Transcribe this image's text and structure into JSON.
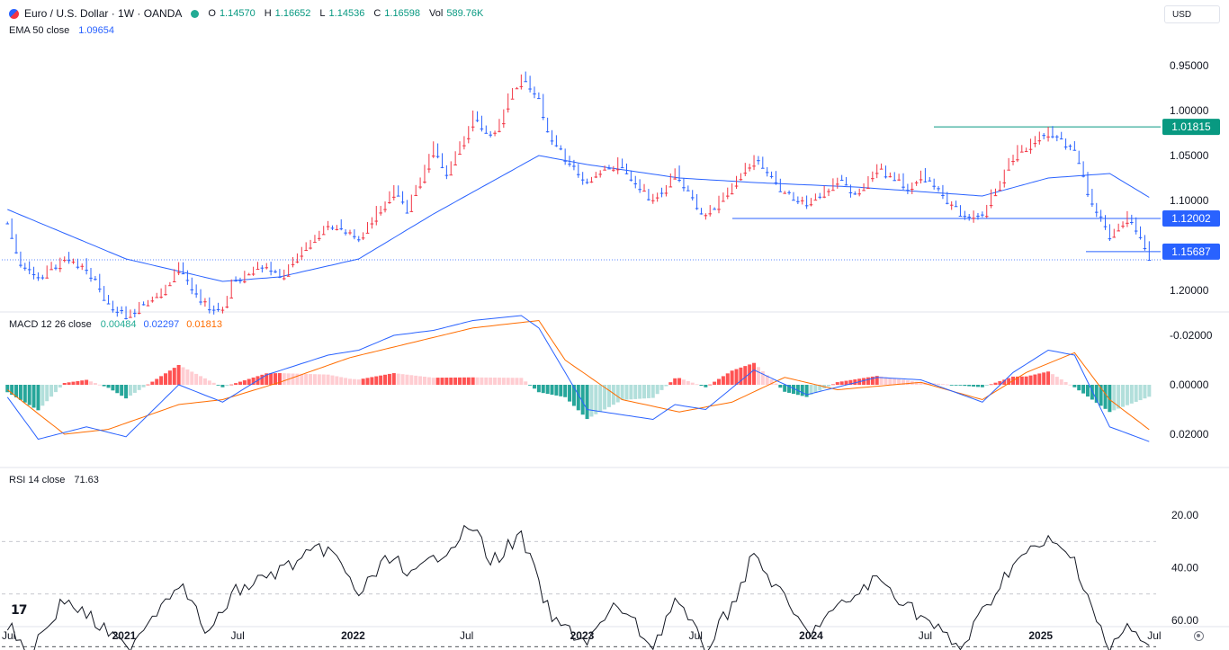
{
  "header": {
    "symbol": "Euro / U.S. Dollar · 1W · OANDA",
    "ohlc": [
      {
        "k": "O",
        "v": "1.14570"
      },
      {
        "k": "H",
        "v": "1.16652"
      },
      {
        "k": "L",
        "v": "1.14536"
      },
      {
        "k": "C",
        "v": "1.16598"
      },
      {
        "k": "Vol",
        "v": "589.76K"
      }
    ],
    "ema_label": "EMA 50 close",
    "ema_value": "1.09654",
    "macd_label": "MACD 12 26 close",
    "macd_values": [
      "0.00484",
      "0.02297",
      "0.01813"
    ],
    "rsi_label": "RSI 14 close",
    "rsi_value": "71.63",
    "currency": "USD",
    "status_dot_color": "#22ab94"
  },
  "colors": {
    "up": "#2962ff",
    "down": "#f23645",
    "ema": "#2962ff",
    "macd": "#2962ff",
    "signal": "#ff6d00",
    "hist_up_strong": "#26a69a",
    "hist_up_weak": "#b2dfdb",
    "hist_down_strong": "#ff5252",
    "hist_down_weak": "#ffcdd2",
    "rsi": "#131722",
    "support_label": "#089981",
    "resistance_label": "#2962ff",
    "grid_text": "#131722",
    "macd_value_colors": [
      "#22ab94",
      "#2962ff",
      "#ff6d00"
    ]
  },
  "chart_data": {
    "type": "candlestick",
    "title": "Euro / U.S. Dollar · 1W · OANDA",
    "x_range": [
      "2020-07",
      "2025-07"
    ],
    "x_tick_labels": [
      "Jul",
      "2021",
      "Jul",
      "2022",
      "Jul",
      "2023",
      "Jul",
      "2024",
      "Jul",
      "2025",
      "Jul"
    ],
    "price_axis": {
      "ticks": [
        "1.20000",
        "1.10000",
        "1.05000",
        "1.00000",
        "0.95000"
      ],
      "ylim": [
        0.945,
        1.235
      ]
    },
    "price_labels": [
      {
        "value": 1.15687,
        "text": "1.15687",
        "kind": "resistance"
      },
      {
        "value": 1.12002,
        "text": "1.12002",
        "kind": "resistance"
      },
      {
        "value": 1.01815,
        "text": "1.01815",
        "kind": "support"
      }
    ],
    "last_price": 1.16598,
    "anchors": [
      [
        "2020-06-29",
        1.125
      ],
      [
        "2020-07-20",
        1.175
      ],
      [
        "2020-08-17",
        1.185
      ],
      [
        "2020-09-28",
        1.165
      ],
      [
        "2020-11-02",
        1.175
      ],
      [
        "2020-12-07",
        1.215
      ],
      [
        "2021-01-04",
        1.228
      ],
      [
        "2021-02-22",
        1.208
      ],
      [
        "2021-03-29",
        1.175
      ],
      [
        "2021-05-17",
        1.222
      ],
      [
        "2021-06-07",
        1.222
      ],
      [
        "2021-06-21",
        1.19
      ],
      [
        "2021-08-16",
        1.172
      ],
      [
        "2021-09-06",
        1.185
      ],
      [
        "2021-10-11",
        1.155
      ],
      [
        "2021-11-22",
        1.125
      ],
      [
        "2022-01-10",
        1.142
      ],
      [
        "2022-03-07",
        1.09
      ],
      [
        "2022-03-28",
        1.11
      ],
      [
        "2022-05-09",
        1.04
      ],
      [
        "2022-05-30",
        1.072
      ],
      [
        "2022-07-11",
        1.005
      ],
      [
        "2022-08-08",
        1.03
      ],
      [
        "2022-09-26",
        0.96
      ],
      [
        "2022-10-24",
        0.99
      ],
      [
        "2022-11-14",
        1.035
      ],
      [
        "2023-01-09",
        1.08
      ],
      [
        "2023-02-27",
        1.058
      ],
      [
        "2023-04-24",
        1.1
      ],
      [
        "2023-05-29",
        1.072
      ],
      [
        "2023-07-17",
        1.118
      ],
      [
        "2023-08-28",
        1.082
      ],
      [
        "2023-10-02",
        1.052
      ],
      [
        "2023-11-20",
        1.092
      ],
      [
        "2023-12-25",
        1.105
      ],
      [
        "2024-02-12",
        1.075
      ],
      [
        "2024-03-11",
        1.092
      ],
      [
        "2024-04-15",
        1.065
      ],
      [
        "2024-06-03",
        1.085
      ],
      [
        "2024-06-24",
        1.07
      ],
      [
        "2024-08-26",
        1.115
      ],
      [
        "2024-09-30",
        1.115
      ],
      [
        "2024-11-18",
        1.05
      ],
      [
        "2025-01-13",
        1.025
      ],
      [
        "2025-02-24",
        1.045
      ],
      [
        "2025-03-17",
        1.09
      ],
      [
        "2025-04-21",
        1.14
      ],
      [
        "2025-05-19",
        1.12
      ],
      [
        "2025-06-16",
        1.152
      ],
      [
        "2025-06-23",
        1.166
      ]
    ],
    "ema50_anchors": [
      [
        "2020-06-29",
        1.11
      ],
      [
        "2021-01-04",
        1.165
      ],
      [
        "2021-06-07",
        1.19
      ],
      [
        "2021-09-06",
        1.185
      ],
      [
        "2022-01-10",
        1.165
      ],
      [
        "2022-05-09",
        1.115
      ],
      [
        "2022-10-24",
        1.05
      ],
      [
        "2023-01-09",
        1.06
      ],
      [
        "2023-06-05",
        1.075
      ],
      [
        "2023-10-02",
        1.08
      ],
      [
        "2024-03-11",
        1.085
      ],
      [
        "2024-09-30",
        1.095
      ],
      [
        "2025-01-13",
        1.075
      ],
      [
        "2025-04-21",
        1.07
      ],
      [
        "2025-06-23",
        1.09654
      ]
    ],
    "macd_axis": {
      "ticks": [
        "0.02000",
        "0.00000",
        "-0.02000"
      ],
      "ylim": [
        -0.03,
        0.026
      ]
    },
    "macd_anchors": [
      [
        "2020-06-29",
        0.005
      ],
      [
        "2020-08-17",
        0.022
      ],
      [
        "2020-11-02",
        0.017
      ],
      [
        "2021-01-04",
        0.021
      ],
      [
        "2021-03-29",
        0.0
      ],
      [
        "2021-06-07",
        0.007
      ],
      [
        "2021-08-16",
        -0.004
      ],
      [
        "2021-11-22",
        -0.012
      ],
      [
        "2022-01-10",
        -0.014
      ],
      [
        "2022-03-07",
        -0.02
      ],
      [
        "2022-05-09",
        -0.022
      ],
      [
        "2022-07-11",
        -0.026
      ],
      [
        "2022-09-26",
        -0.028
      ],
      [
        "2022-10-24",
        -0.023
      ],
      [
        "2023-01-09",
        0.01
      ],
      [
        "2023-04-24",
        0.014
      ],
      [
        "2023-05-29",
        0.008
      ],
      [
        "2023-07-17",
        0.01
      ],
      [
        "2023-10-02",
        -0.006
      ],
      [
        "2023-12-25",
        0.004
      ],
      [
        "2024-04-15",
        -0.003
      ],
      [
        "2024-06-24",
        -0.002
      ],
      [
        "2024-09-30",
        0.007
      ],
      [
        "2024-11-18",
        -0.005
      ],
      [
        "2025-01-13",
        -0.014
      ],
      [
        "2025-02-24",
        -0.012
      ],
      [
        "2025-04-21",
        0.017
      ],
      [
        "2025-06-23",
        0.02297
      ]
    ],
    "signal_anchors": [
      [
        "2020-06-29",
        0.002
      ],
      [
        "2020-09-28",
        0.02
      ],
      [
        "2020-12-07",
        0.018
      ],
      [
        "2021-03-29",
        0.008
      ],
      [
        "2021-06-07",
        0.006
      ],
      [
        "2021-09-06",
        -0.001
      ],
      [
        "2021-12-27",
        -0.011
      ],
      [
        "2022-04-04",
        -0.017
      ],
      [
        "2022-07-11",
        -0.023
      ],
      [
        "2022-10-24",
        -0.026
      ],
      [
        "2022-12-05",
        -0.01
      ],
      [
        "2023-03-06",
        0.006
      ],
      [
        "2023-06-05",
        0.011
      ],
      [
        "2023-08-28",
        0.007
      ],
      [
        "2023-11-20",
        -0.003
      ],
      [
        "2024-02-12",
        0.002
      ],
      [
        "2024-06-24",
        -0.001
      ],
      [
        "2024-09-30",
        0.006
      ],
      [
        "2024-12-09",
        -0.005
      ],
      [
        "2025-02-24",
        -0.013
      ],
      [
        "2025-04-21",
        0.006
      ],
      [
        "2025-06-23",
        0.01813
      ]
    ],
    "rsi_axis": {
      "ticks": [
        "60.00",
        "40.00",
        "20.00"
      ],
      "ylim": [
        20,
        76
      ],
      "bands": [
        70,
        50,
        30
      ]
    },
    "rsi_anchors": [
      [
        "2020-06-29",
        62
      ],
      [
        "2020-08-03",
        72
      ],
      [
        "2020-09-28",
        52
      ],
      [
        "2020-11-02",
        58
      ],
      [
        "2021-01-04",
        71
      ],
      [
        "2021-03-29",
        45
      ],
      [
        "2021-05-17",
        66
      ],
      [
        "2021-06-21",
        50
      ],
      [
        "2021-11-22",
        32
      ],
      [
        "2022-01-10",
        50
      ],
      [
        "2022-03-07",
        34
      ],
      [
        "2022-03-28",
        45
      ],
      [
        "2022-07-11",
        24
      ],
      [
        "2022-08-08",
        38
      ],
      [
        "2022-09-26",
        28
      ],
      [
        "2022-11-14",
        60
      ],
      [
        "2023-01-09",
        68
      ],
      [
        "2023-02-27",
        54
      ],
      [
        "2023-04-24",
        70
      ],
      [
        "2023-05-29",
        52
      ],
      [
        "2023-07-17",
        71
      ],
      [
        "2023-08-28",
        54
      ],
      [
        "2023-10-02",
        35
      ],
      [
        "2023-12-25",
        65
      ],
      [
        "2024-04-15",
        44
      ],
      [
        "2024-08-26",
        71
      ],
      [
        "2024-11-18",
        38
      ],
      [
        "2025-01-13",
        30
      ],
      [
        "2025-02-24",
        37
      ],
      [
        "2025-04-21",
        72
      ],
      [
        "2025-05-19",
        62
      ],
      [
        "2025-06-23",
        71.63
      ]
    ]
  }
}
